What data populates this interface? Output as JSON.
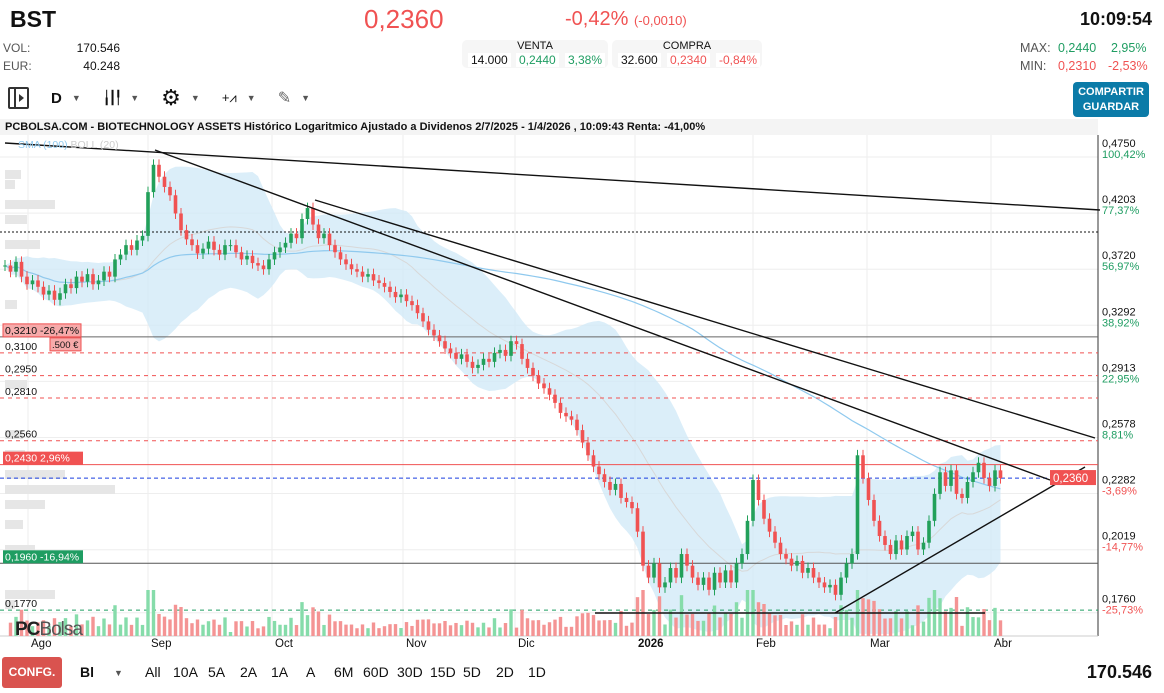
{
  "header": {
    "symbol": "BST",
    "price": "0,2360",
    "change_pct": "-0,42%",
    "change_abs": "(-0,0010)",
    "time": "10:09:54",
    "vol_label": "VOL:",
    "vol": "170.546",
    "eur_label": "EUR:",
    "eur": "40.248",
    "sell": {
      "label": "VENTA",
      "qty": "14.000",
      "price": "0,2440",
      "pct": "3,38%"
    },
    "buy": {
      "label": "COMPRA",
      "qty": "32.600",
      "price": "0,2340",
      "pct": "-0,84%"
    },
    "max_label": "MAX:",
    "max": "0,2440",
    "max_pct": "2,95%",
    "min_label": "MIN:",
    "min": "0,2310",
    "min_pct": "-2,53%"
  },
  "toolbar": {
    "period": "D",
    "share_line1": "COMPARTIR",
    "share_line2": "GUARDAR",
    "icons": [
      "sidebar-toggle-icon",
      "candles-icon",
      "gear-icon",
      "indicators-icon",
      "pencil-icon"
    ]
  },
  "footer": {
    "config": "CONFG.",
    "mode": "Bl",
    "ranges": [
      "All",
      "10A",
      "5A",
      "2A",
      "1A",
      "A",
      "6M",
      "60D",
      "30D",
      "15D",
      "5D",
      "2D",
      "1D"
    ],
    "volume": "170.546"
  },
  "colors": {
    "up": "#22a05a",
    "down": "#f05252",
    "accent": "#0b7ba8",
    "band": "#cfe8f7"
  },
  "chart_data": {
    "type": "candlestick",
    "title": "PCBOLSA.COM - BIOTECHNOLOGY ASSETS Histórico Logaritmico Ajustado a Dividenos 2/7/2025 - 1/4/2026 , 10:09:43 Renta: -41,00%",
    "legend": [
      "SMA (100)",
      "BOLL (20)"
    ],
    "scale": "log",
    "ylim": [
      0.17,
      0.48
    ],
    "x_ticks": [
      "Ago",
      "Sep",
      "Oct",
      "Nov",
      "Dic",
      "2026",
      "Feb",
      "Mar",
      "Abr"
    ],
    "y_ticks": [
      {
        "p": "0,4750",
        "pct": "100,42%"
      },
      {
        "p": "0,4203",
        "pct": "77,37%"
      },
      {
        "p": "0,3720",
        "pct": "56,97%"
      },
      {
        "p": "0,3292",
        "pct": "38,92%"
      },
      {
        "p": "0,2913",
        "pct": "22,95%"
      },
      {
        "p": "0,2578",
        "pct": "8,81%"
      },
      {
        "p": "0,2282",
        "pct": "-3,69%"
      },
      {
        "p": "0,2019",
        "pct": "-14,77%"
      },
      {
        "p": "0,1760",
        "pct": "-25,73%"
      }
    ],
    "last_price": "0,2360",
    "levels": [
      {
        "v": 0.321,
        "label": "0,3210  -26,47%",
        "sub": ".500 €",
        "style": "box-red"
      },
      {
        "v": 0.31,
        "label": "0,3100",
        "style": "dash-red"
      },
      {
        "v": 0.295,
        "label": "0,2950",
        "style": "dash-red"
      },
      {
        "v": 0.281,
        "label": "0,2810",
        "style": "dash-red"
      },
      {
        "v": 0.256,
        "label": "0,2560",
        "style": "dash-red"
      },
      {
        "v": 0.243,
        "label": "0,2430  2,96%",
        "style": "solid-red"
      },
      {
        "v": 0.196,
        "label": "0,1960  -16,94%",
        "style": "solid-green"
      },
      {
        "v": 0.177,
        "label": "0,1770",
        "style": "dash-green"
      }
    ],
    "closes": [
      0.375,
      0.37,
      0.378,
      0.366,
      0.36,
      0.363,
      0.358,
      0.352,
      0.355,
      0.348,
      0.353,
      0.36,
      0.357,
      0.366,
      0.362,
      0.368,
      0.36,
      0.363,
      0.37,
      0.366,
      0.38,
      0.384,
      0.392,
      0.388,
      0.396,
      0.4,
      0.44,
      0.467,
      0.455,
      0.445,
      0.437,
      0.42,
      0.405,
      0.397,
      0.392,
      0.385,
      0.389,
      0.395,
      0.388,
      0.384,
      0.392,
      0.392,
      0.386,
      0.38,
      0.383,
      0.377,
      0.375,
      0.372,
      0.38,
      0.386,
      0.39,
      0.394,
      0.402,
      0.398,
      0.415,
      0.425,
      0.41,
      0.398,
      0.402,
      0.392,
      0.386,
      0.38,
      0.376,
      0.372,
      0.37,
      0.366,
      0.368,
      0.363,
      0.361,
      0.358,
      0.354,
      0.35,
      0.352,
      0.347,
      0.344,
      0.338,
      0.332,
      0.326,
      0.322,
      0.318,
      0.313,
      0.31,
      0.306,
      0.309,
      0.304,
      0.3,
      0.302,
      0.306,
      0.304,
      0.31,
      0.312,
      0.308,
      0.318,
      0.316,
      0.306,
      0.3,
      0.295,
      0.29,
      0.287,
      0.283,
      0.278,
      0.272,
      0.27,
      0.268,
      0.262,
      0.255,
      0.248,
      0.242,
      0.238,
      0.234,
      0.23,
      0.233,
      0.226,
      0.224,
      0.221,
      0.21,
      0.195,
      0.19,
      0.196,
      0.186,
      0.188,
      0.194,
      0.19,
      0.2,
      0.195,
      0.19,
      0.187,
      0.19,
      0.185,
      0.192,
      0.188,
      0.193,
      0.188,
      0.196,
      0.2,
      0.215,
      0.235,
      0.225,
      0.216,
      0.21,
      0.205,
      0.2,
      0.198,
      0.195,
      0.197,
      0.192,
      0.194,
      0.19,
      0.188,
      0.186,
      0.187,
      0.183,
      0.19,
      0.196,
      0.2,
      0.248,
      0.236,
      0.225,
      0.215,
      0.208,
      0.204,
      0.2,
      0.206,
      0.202,
      0.208,
      0.21,
      0.202,
      0.205,
      0.215,
      0.228,
      0.239,
      0.232,
      0.24,
      0.228,
      0.226,
      0.234,
      0.239,
      0.244,
      0.236,
      0.232,
      0.24,
      0.236
    ]
  }
}
